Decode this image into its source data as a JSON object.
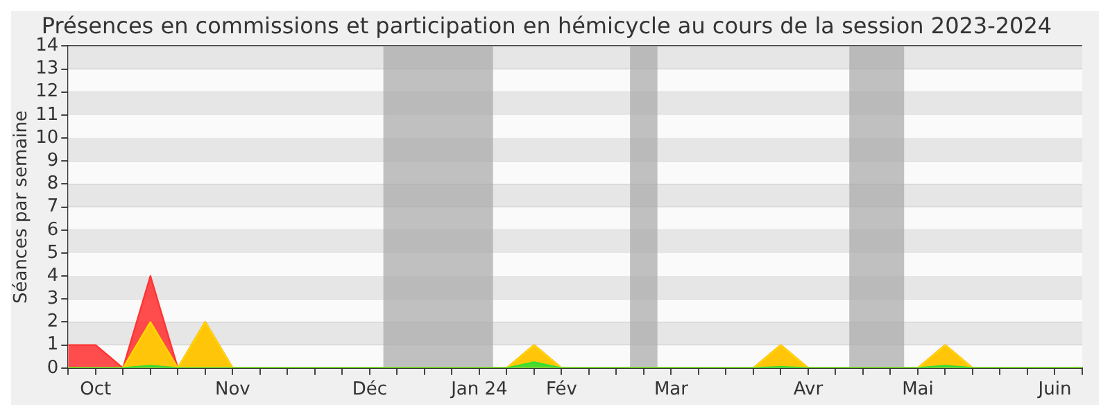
{
  "chart_data": {
    "type": "area",
    "title": "Présences en commissions et participation en hémicycle au cours de la session 2023-2024",
    "ylabel": "Séances par semaine",
    "x": [
      "2023-10-02",
      "2023-10-09",
      "2023-10-16",
      "2023-10-23",
      "2023-10-30",
      "2023-11-06",
      "2023-11-13",
      "2023-11-20",
      "2023-11-27",
      "2023-12-04",
      "2023-12-11",
      "2023-12-18",
      "2023-12-25",
      "2024-01-01",
      "2024-01-08",
      "2024-01-15",
      "2024-01-22",
      "2024-01-29",
      "2024-02-05",
      "2024-02-12",
      "2024-02-19",
      "2024-02-26",
      "2024-03-04",
      "2024-03-11",
      "2024-03-18",
      "2024-03-25",
      "2024-04-01",
      "2024-04-08",
      "2024-04-15",
      "2024-04-22",
      "2024-04-29",
      "2024-05-06",
      "2024-05-13",
      "2024-05-20",
      "2024-05-27",
      "2024-06-03",
      "2024-06-10",
      "2024-06-17"
    ],
    "series": [
      {
        "color": "#ff3333",
        "values": [
          1,
          1,
          0,
          4,
          0,
          2,
          0,
          0,
          0,
          0,
          0,
          0,
          0,
          0,
          0,
          0,
          0,
          1,
          0,
          0,
          0,
          0,
          0,
          0,
          0,
          0,
          1,
          0,
          0,
          0,
          0,
          0,
          1,
          0,
          0,
          0,
          0,
          0
        ]
      },
      {
        "color": "#ffd700",
        "values": [
          0,
          0,
          0,
          2,
          0,
          2,
          0,
          0,
          0,
          0,
          0,
          0,
          0,
          0,
          0,
          0,
          0,
          1,
          0,
          0,
          0,
          0,
          0,
          0,
          0,
          0,
          1,
          0,
          0,
          0,
          0,
          0,
          1,
          0,
          0,
          0,
          0,
          0
        ]
      },
      {
        "color": "#33dd33",
        "values": [
          0,
          0,
          0,
          0.1,
          0,
          0,
          0,
          0,
          0,
          0,
          0,
          0,
          0,
          0,
          0,
          0,
          0,
          0.25,
          0,
          0,
          0,
          0,
          0,
          0,
          0,
          0,
          0.05,
          0,
          0,
          0,
          0,
          0,
          0.1,
          0,
          0,
          0,
          0,
          0
        ]
      }
    ],
    "xlim": [
      "2023-10-02",
      "2024-06-17"
    ],
    "xticks": [
      {
        "value": "2023-10-02",
        "label": null
      },
      {
        "value": "2023-10-09",
        "label": "Oct"
      },
      {
        "value": "2023-10-16",
        "label": null
      },
      {
        "value": "2023-10-23",
        "label": null
      },
      {
        "value": "2023-10-30",
        "label": null
      },
      {
        "value": "2023-11-06",
        "label": null
      },
      {
        "value": "2023-11-13",
        "label": "Nov"
      },
      {
        "value": "2023-11-20",
        "label": null
      },
      {
        "value": "2023-11-27",
        "label": null
      },
      {
        "value": "2023-12-04",
        "label": null
      },
      {
        "value": "2023-12-11",
        "label": null
      },
      {
        "value": "2023-12-18",
        "label": "Déc"
      },
      {
        "value": "2023-12-25",
        "label": null
      },
      {
        "value": "2024-01-01",
        "label": null
      },
      {
        "value": "2024-01-08",
        "label": null
      },
      {
        "value": "2024-01-15",
        "label": "Jan 24"
      },
      {
        "value": "2024-01-22",
        "label": null
      },
      {
        "value": "2024-01-29",
        "label": null
      },
      {
        "value": "2024-02-05",
        "label": "Fév"
      },
      {
        "value": "2024-02-12",
        "label": null
      },
      {
        "value": "2024-02-19",
        "label": null
      },
      {
        "value": "2024-02-26",
        "label": null
      },
      {
        "value": "2024-03-04",
        "label": "Mar"
      },
      {
        "value": "2024-03-11",
        "label": null
      },
      {
        "value": "2024-03-18",
        "label": null
      },
      {
        "value": "2024-03-25",
        "label": null
      },
      {
        "value": "2024-04-01",
        "label": null
      },
      {
        "value": "2024-04-08",
        "label": "Avr"
      },
      {
        "value": "2024-04-15",
        "label": null
      },
      {
        "value": "2024-04-22",
        "label": null
      },
      {
        "value": "2024-04-29",
        "label": null
      },
      {
        "value": "2024-05-06",
        "label": "Mai"
      },
      {
        "value": "2024-05-13",
        "label": null
      },
      {
        "value": "2024-05-20",
        "label": null
      },
      {
        "value": "2024-05-27",
        "label": null
      },
      {
        "value": "2024-06-03",
        "label": null
      },
      {
        "value": "2024-06-10",
        "label": "Juin"
      },
      {
        "value": "2024-06-17",
        "label": null
      }
    ],
    "ylim": [
      0,
      14
    ],
    "yticks": [
      0,
      1,
      2,
      3,
      4,
      5,
      6,
      7,
      8,
      9,
      10,
      11,
      12,
      13,
      14
    ],
    "bands": [
      {
        "axis": "x",
        "from": "2023-12-21T12:00",
        "to": "2024-01-18T12:00",
        "color": "#aaaaaa"
      },
      {
        "axis": "x",
        "from": "2024-02-22T12:00",
        "to": "2024-02-29T12:00",
        "color": "#aaaaaa"
      },
      {
        "axis": "x",
        "from": "2024-04-18T12:00",
        "to": "2024-05-02T12:00",
        "color": "#aaaaaa"
      }
    ],
    "grid": "y",
    "legend": false,
    "marker": "none",
    "line_style": "solid"
  }
}
